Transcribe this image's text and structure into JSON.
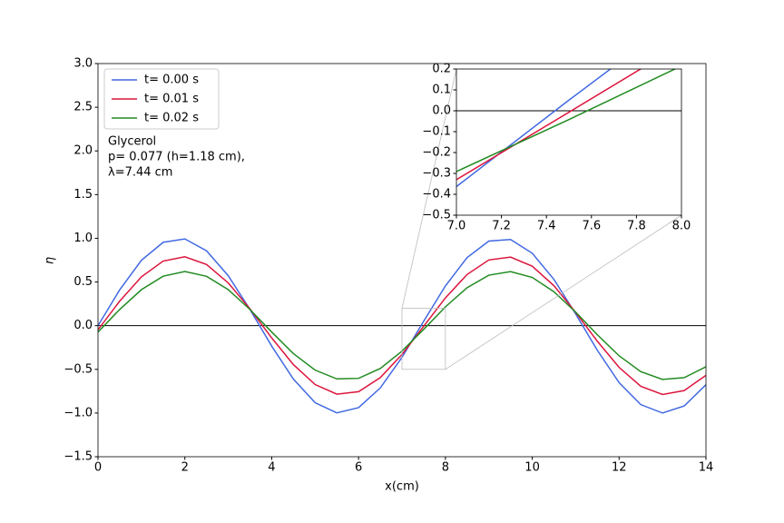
{
  "chart_data": {
    "type": "line",
    "xlabel": "x(cm)",
    "ylabel": "η",
    "x": [
      0,
      0.5,
      1,
      1.5,
      2,
      2.5,
      3,
      3.5,
      4,
      4.5,
      5,
      5.5,
      6,
      6.5,
      7,
      7.5,
      8,
      8.5,
      9,
      9.5,
      10,
      10.5,
      11,
      11.5,
      12,
      12.5,
      13,
      13.5,
      14
    ],
    "series": [
      {
        "name": "t= 0.00 s",
        "color": "#4169e1",
        "values": [
          0,
          0.41,
          0.748,
          0.954,
          0.993,
          0.857,
          0.571,
          0.185,
          -0.234,
          -0.612,
          -0.882,
          -0.998,
          -0.938,
          -0.713,
          -0.363,
          0.051,
          0.455,
          0.78,
          0.968,
          0.986,
          0.829,
          0.529,
          0.134,
          -0.283,
          -0.652,
          -0.904,
          -1.0,
          -0.919,
          -0.676
        ]
      },
      {
        "name": "t= 0.01 s",
        "color": "#dc143c",
        "values": [
          -0.047,
          0.281,
          0.559,
          0.739,
          0.789,
          0.7,
          0.489,
          0.192,
          -0.14,
          -0.446,
          -0.674,
          -0.784,
          -0.756,
          -0.595,
          -0.33,
          -0.007,
          0.318,
          0.586,
          0.752,
          0.785,
          0.681,
          0.457,
          0.152,
          -0.179,
          -0.478,
          -0.694,
          -0.788,
          -0.743,
          -0.568
        ]
      },
      {
        "name": "t= 0.02 s",
        "color": "#228b22",
        "values": [
          -0.073,
          0.186,
          0.412,
          0.566,
          0.62,
          0.565,
          0.412,
          0.185,
          -0.073,
          -0.32,
          -0.509,
          -0.609,
          -0.603,
          -0.49,
          -0.291,
          -0.042,
          0.215,
          0.435,
          0.578,
          0.619,
          0.552,
          0.388,
          0.155,
          -0.105,
          -0.345,
          -0.527,
          -0.615,
          -0.595,
          -0.47
        ]
      }
    ],
    "xlim": [
      0,
      14
    ],
    "ylim": [
      -1.5,
      3.0
    ],
    "xticks": [
      0,
      2,
      4,
      6,
      8,
      10,
      12,
      14
    ],
    "yticks": [
      {
        "value": -1.5,
        "label": "−1.5"
      },
      {
        "value": -1.0,
        "label": "−1.0"
      },
      {
        "value": -0.5,
        "label": "−0.5"
      },
      {
        "value": 0,
        "label": "0.0"
      },
      {
        "value": 0.5,
        "label": "0.5"
      },
      {
        "value": 1.0,
        "label": "1.0"
      },
      {
        "value": 1.5,
        "label": "1.5"
      },
      {
        "value": 2.0,
        "label": "2.0"
      },
      {
        "value": 2.5,
        "label": "2.5"
      },
      {
        "value": 3.0,
        "label": "3.0"
      }
    ],
    "hline": 0,
    "legend": "upper left",
    "annotation": [
      "Glycerol",
      "p= 0.077 (h=1.18 cm),",
      "λ=7.44 cm"
    ],
    "inset": {
      "xlim": [
        7,
        8
      ],
      "ylim": [
        -0.5,
        0.2
      ],
      "xticks": [
        {
          "value": 7,
          "label": "7.0"
        },
        {
          "value": 7.2,
          "label": "7.2"
        },
        {
          "value": 7.4,
          "label": "7.4"
        },
        {
          "value": 7.6,
          "label": "7.6"
        },
        {
          "value": 7.8,
          "label": "7.8"
        },
        {
          "value": 8,
          "label": "8.0"
        }
      ],
      "yticks": [
        {
          "value": -0.5,
          "label": "−0.5"
        },
        {
          "value": -0.4,
          "label": "−0.4"
        },
        {
          "value": -0.3,
          "label": "−0.3"
        },
        {
          "value": -0.2,
          "label": "−0.2"
        },
        {
          "value": -0.1,
          "label": "−0.1"
        },
        {
          "value": 0,
          "label": "0.0"
        },
        {
          "value": 0.1,
          "label": "0.1"
        },
        {
          "value": 0.2,
          "label": "0.2"
        }
      ]
    }
  }
}
